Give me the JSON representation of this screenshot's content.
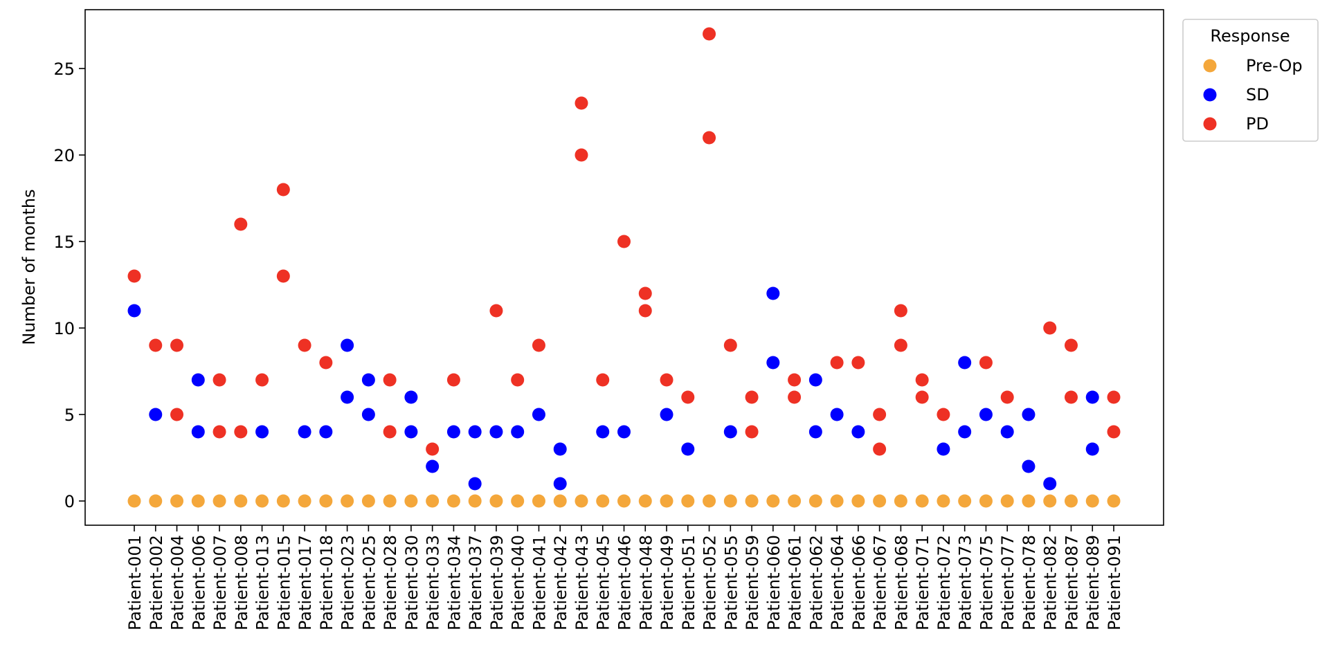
{
  "chart_data": {
    "type": "scatter",
    "title": "",
    "xlabel": "",
    "ylabel": "Number of months",
    "ylim": [
      -1.4,
      28.4
    ],
    "yticks": [
      0,
      5,
      10,
      15,
      20,
      25
    ],
    "grid": false,
    "categories": [
      "Patient-001",
      "Patient-002",
      "Patient-004",
      "Patient-006",
      "Patient-007",
      "Patient-008",
      "Patient-013",
      "Patient-015",
      "Patient-017",
      "Patient-018",
      "Patient-023",
      "Patient-025",
      "Patient-028",
      "Patient-030",
      "Patient-033",
      "Patient-034",
      "Patient-037",
      "Patient-039",
      "Patient-040",
      "Patient-041",
      "Patient-042",
      "Patient-043",
      "Patient-045",
      "Patient-046",
      "Patient-048",
      "Patient-049",
      "Patient-051",
      "Patient-052",
      "Patient-055",
      "Patient-059",
      "Patient-060",
      "Patient-061",
      "Patient-062",
      "Patient-064",
      "Patient-066",
      "Patient-067",
      "Patient-068",
      "Patient-071",
      "Patient-072",
      "Patient-073",
      "Patient-075",
      "Patient-077",
      "Patient-078",
      "Patient-082",
      "Patient-087",
      "Patient-089",
      "Patient-091"
    ],
    "legend": {
      "title": "Response",
      "position": "upper-right-outside"
    },
    "series": [
      {
        "name": "Pre-Op",
        "color": "#F4A73B",
        "points": [
          [
            "Patient-001",
            0
          ],
          [
            "Patient-002",
            0
          ],
          [
            "Patient-004",
            0
          ],
          [
            "Patient-006",
            0
          ],
          [
            "Patient-007",
            0
          ],
          [
            "Patient-008",
            0
          ],
          [
            "Patient-013",
            0
          ],
          [
            "Patient-015",
            0
          ],
          [
            "Patient-017",
            0
          ],
          [
            "Patient-018",
            0
          ],
          [
            "Patient-023",
            0
          ],
          [
            "Patient-025",
            0
          ],
          [
            "Patient-028",
            0
          ],
          [
            "Patient-030",
            0
          ],
          [
            "Patient-033",
            0
          ],
          [
            "Patient-034",
            0
          ],
          [
            "Patient-037",
            0
          ],
          [
            "Patient-039",
            0
          ],
          [
            "Patient-040",
            0
          ],
          [
            "Patient-041",
            0
          ],
          [
            "Patient-042",
            0
          ],
          [
            "Patient-043",
            0
          ],
          [
            "Patient-045",
            0
          ],
          [
            "Patient-046",
            0
          ],
          [
            "Patient-048",
            0
          ],
          [
            "Patient-049",
            0
          ],
          [
            "Patient-051",
            0
          ],
          [
            "Patient-052",
            0
          ],
          [
            "Patient-055",
            0
          ],
          [
            "Patient-059",
            0
          ],
          [
            "Patient-060",
            0
          ],
          [
            "Patient-061",
            0
          ],
          [
            "Patient-062",
            0
          ],
          [
            "Patient-064",
            0
          ],
          [
            "Patient-066",
            0
          ],
          [
            "Patient-067",
            0
          ],
          [
            "Patient-068",
            0
          ],
          [
            "Patient-071",
            0
          ],
          [
            "Patient-072",
            0
          ],
          [
            "Patient-073",
            0
          ],
          [
            "Patient-075",
            0
          ],
          [
            "Patient-077",
            0
          ],
          [
            "Patient-078",
            0
          ],
          [
            "Patient-082",
            0
          ],
          [
            "Patient-087",
            0
          ],
          [
            "Patient-089",
            0
          ],
          [
            "Patient-091",
            0
          ]
        ]
      },
      {
        "name": "SD",
        "color": "#0000FF",
        "points": [
          [
            "Patient-001",
            11
          ],
          [
            "Patient-002",
            5
          ],
          [
            "Patient-006",
            7
          ],
          [
            "Patient-006",
            4
          ],
          [
            "Patient-013",
            4
          ],
          [
            "Patient-017",
            4
          ],
          [
            "Patient-018",
            4
          ],
          [
            "Patient-023",
            9
          ],
          [
            "Patient-023",
            6
          ],
          [
            "Patient-025",
            7
          ],
          [
            "Patient-025",
            5
          ],
          [
            "Patient-030",
            6
          ],
          [
            "Patient-030",
            4
          ],
          [
            "Patient-033",
            2
          ],
          [
            "Patient-034",
            4
          ],
          [
            "Patient-037",
            4
          ],
          [
            "Patient-037",
            1
          ],
          [
            "Patient-039",
            4
          ],
          [
            "Patient-040",
            4
          ],
          [
            "Patient-041",
            5
          ],
          [
            "Patient-042",
            3
          ],
          [
            "Patient-042",
            1
          ],
          [
            "Patient-045",
            4
          ],
          [
            "Patient-046",
            4
          ],
          [
            "Patient-049",
            5
          ],
          [
            "Patient-051",
            3
          ],
          [
            "Patient-055",
            4
          ],
          [
            "Patient-060",
            12
          ],
          [
            "Patient-060",
            8
          ],
          [
            "Patient-062",
            7
          ],
          [
            "Patient-062",
            4
          ],
          [
            "Patient-064",
            5
          ],
          [
            "Patient-066",
            4
          ],
          [
            "Patient-072",
            3
          ],
          [
            "Patient-073",
            8
          ],
          [
            "Patient-073",
            4
          ],
          [
            "Patient-075",
            5
          ],
          [
            "Patient-077",
            4
          ],
          [
            "Patient-078",
            5
          ],
          [
            "Patient-078",
            2
          ],
          [
            "Patient-082",
            1
          ],
          [
            "Patient-089",
            6
          ],
          [
            "Patient-089",
            3
          ]
        ]
      },
      {
        "name": "PD",
        "color": "#EE3124",
        "points": [
          [
            "Patient-001",
            13
          ],
          [
            "Patient-002",
            9
          ],
          [
            "Patient-004",
            9
          ],
          [
            "Patient-004",
            5
          ],
          [
            "Patient-007",
            7
          ],
          [
            "Patient-007",
            4
          ],
          [
            "Patient-008",
            16
          ],
          [
            "Patient-008",
            4
          ],
          [
            "Patient-013",
            7
          ],
          [
            "Patient-015",
            18
          ],
          [
            "Patient-015",
            13
          ],
          [
            "Patient-017",
            9
          ],
          [
            "Patient-018",
            8
          ],
          [
            "Patient-028",
            7
          ],
          [
            "Patient-028",
            4
          ],
          [
            "Patient-033",
            3
          ],
          [
            "Patient-034",
            7
          ],
          [
            "Patient-039",
            11
          ],
          [
            "Patient-040",
            7
          ],
          [
            "Patient-041",
            9
          ],
          [
            "Patient-043",
            23
          ],
          [
            "Patient-043",
            20
          ],
          [
            "Patient-045",
            7
          ],
          [
            "Patient-046",
            15
          ],
          [
            "Patient-048",
            12
          ],
          [
            "Patient-048",
            11
          ],
          [
            "Patient-049",
            7
          ],
          [
            "Patient-051",
            6
          ],
          [
            "Patient-052",
            27
          ],
          [
            "Patient-052",
            21
          ],
          [
            "Patient-055",
            9
          ],
          [
            "Patient-059",
            6
          ],
          [
            "Patient-059",
            4
          ],
          [
            "Patient-061",
            7
          ],
          [
            "Patient-061",
            6
          ],
          [
            "Patient-064",
            8
          ],
          [
            "Patient-066",
            8
          ],
          [
            "Patient-067",
            5
          ],
          [
            "Patient-067",
            3
          ],
          [
            "Patient-068",
            11
          ],
          [
            "Patient-068",
            9
          ],
          [
            "Patient-071",
            7
          ],
          [
            "Patient-071",
            6
          ],
          [
            "Patient-072",
            5
          ],
          [
            "Patient-075",
            8
          ],
          [
            "Patient-077",
            6
          ],
          [
            "Patient-082",
            10
          ],
          [
            "Patient-087",
            9
          ],
          [
            "Patient-087",
            6
          ],
          [
            "Patient-091",
            6
          ],
          [
            "Patient-091",
            4
          ]
        ]
      }
    ]
  }
}
